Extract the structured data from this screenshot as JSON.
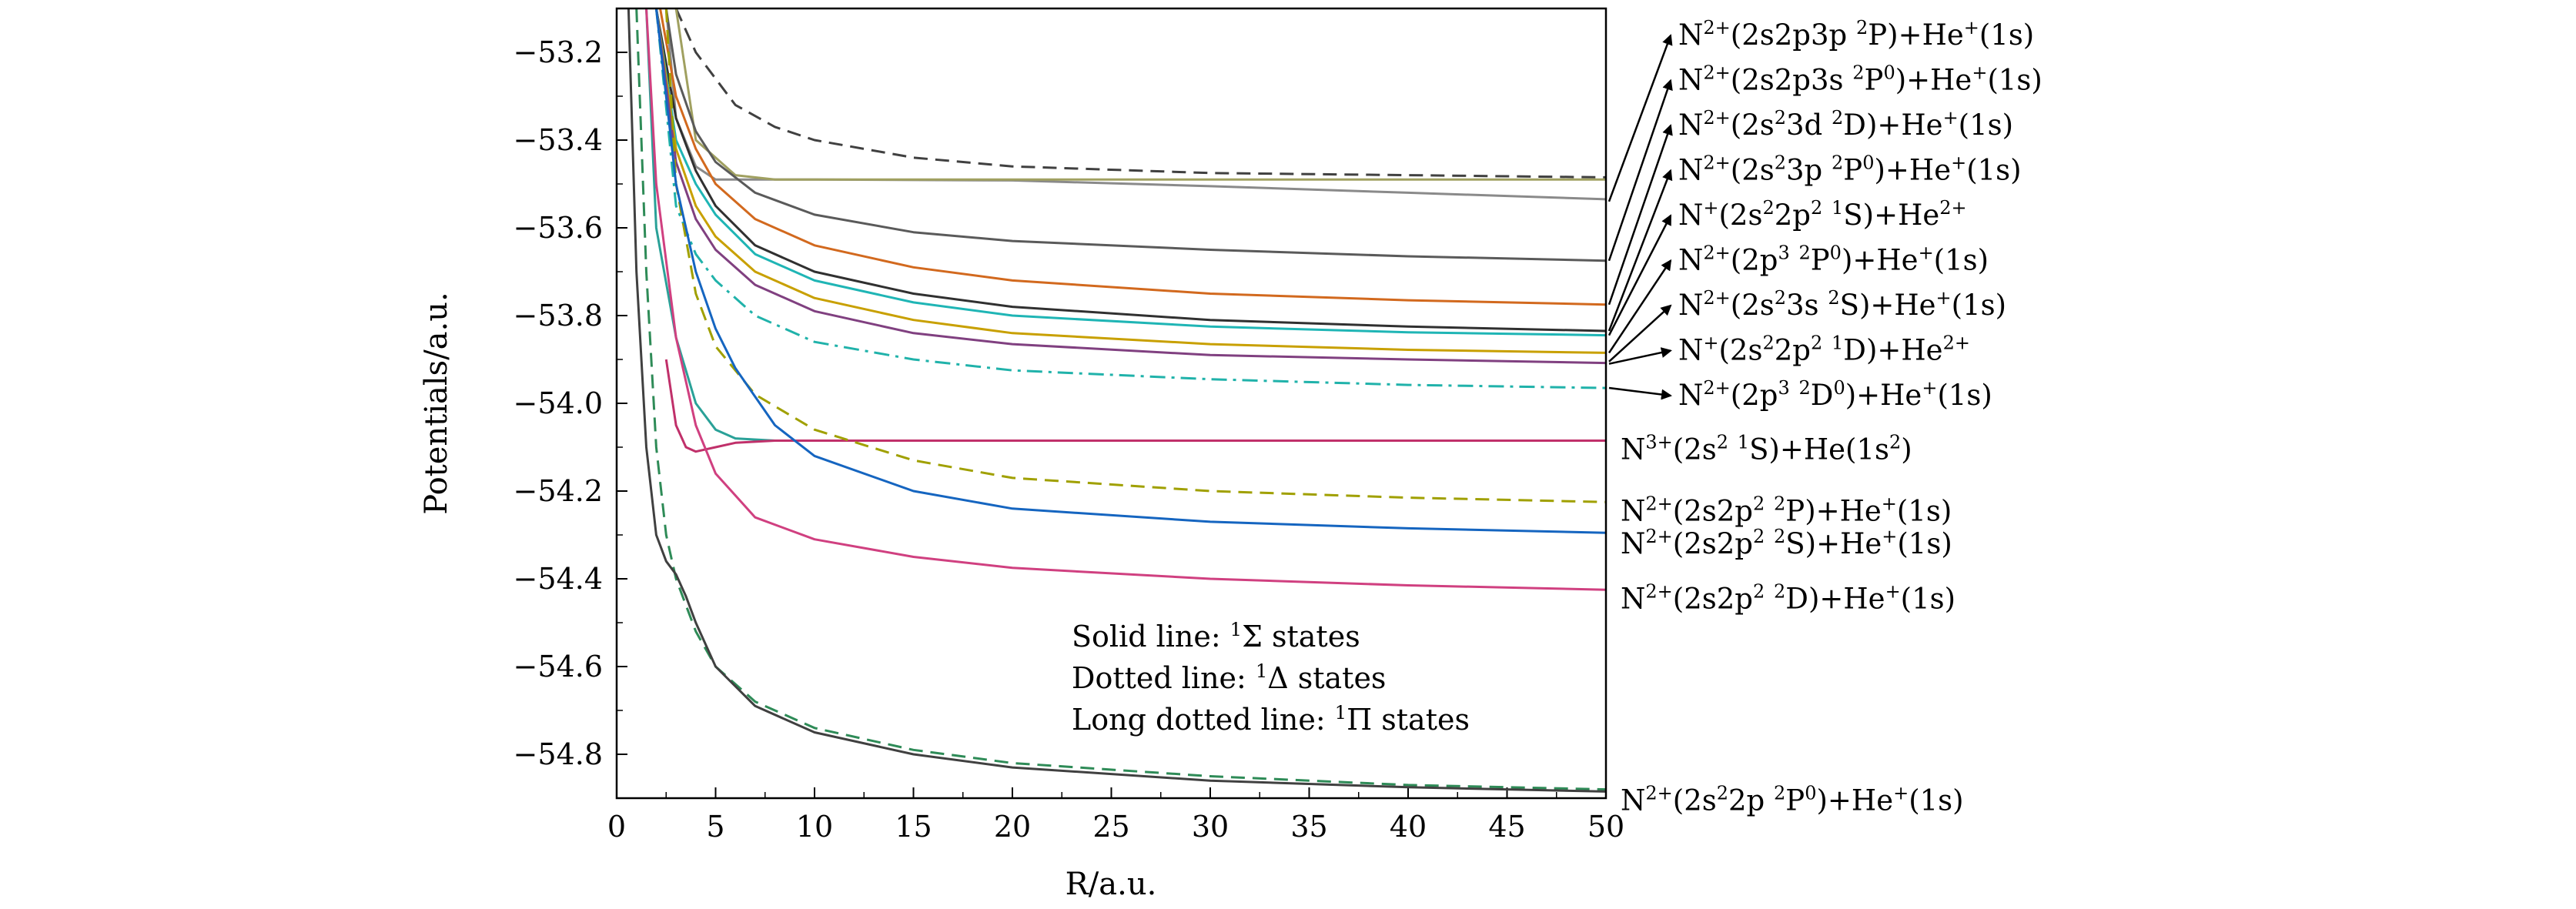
{
  "chart_data": {
    "type": "line",
    "xlabel": "R/a.u.",
    "ylabel": "Potentials/a.u.",
    "xlim": [
      0,
      50
    ],
    "ylim": [
      -54.9,
      -53.1
    ],
    "x_ticks": [
      0,
      5,
      10,
      15,
      20,
      25,
      30,
      35,
      40,
      45,
      50
    ],
    "y_ticks": [
      -54.8,
      -54.6,
      -54.4,
      -54.2,
      -54.0,
      -53.8,
      -53.6,
      -53.4,
      -53.2
    ],
    "x_tick_labels": [
      "0",
      "5",
      "10",
      "15",
      "20",
      "25",
      "30",
      "35",
      "40",
      "45",
      "50"
    ],
    "y_tick_labels": [
      "−54.8",
      "−54.6",
      "−54.4",
      "−54.2",
      "−54.0",
      "−53.8",
      "−53.6",
      "−53.4",
      "−53.2"
    ],
    "notes": [
      {
        "text": "Solid line: ",
        "sup": "1",
        "tail": "Σ states"
      },
      {
        "text": "Dotted line: ",
        "sup": "1",
        "tail": "Δ states"
      },
      {
        "text": "Long dotted line: ",
        "sup": "1",
        "tail": "Π states"
      }
    ],
    "series": [
      {
        "style": "dash",
        "color": "#404040",
        "x": [
          3,
          4,
          6,
          8,
          10,
          15,
          20,
          30,
          40,
          50
        ],
        "y": [
          -53.1,
          -53.2,
          -53.32,
          -53.37,
          -53.4,
          -53.44,
          -53.46,
          -53.475,
          -53.48,
          -53.485
        ]
      },
      {
        "style": "solid",
        "color": "#8a8a8a",
        "x": [
          2.5,
          3,
          4,
          5,
          7,
          10,
          20,
          30,
          40,
          50
        ],
        "y": [
          -53.1,
          -53.35,
          -53.46,
          -53.49,
          -53.49,
          -53.49,
          -53.492,
          -53.505,
          -53.52,
          -53.535
        ]
      },
      {
        "style": "solid",
        "color": "#a0a060",
        "x": [
          3,
          4,
          6,
          8,
          15,
          25,
          50
        ],
        "y": [
          -53.1,
          -53.4,
          -53.48,
          -53.49,
          -53.49,
          -53.49,
          -53.49
        ]
      },
      {
        "style": "solid",
        "color": "#5a5a5a",
        "x": [
          2.5,
          3,
          4,
          5,
          7,
          10,
          15,
          20,
          30,
          40,
          50
        ],
        "y": [
          -53.1,
          -53.25,
          -53.38,
          -53.45,
          -53.52,
          -53.57,
          -53.61,
          -53.63,
          -53.65,
          -53.665,
          -53.675
        ]
      },
      {
        "style": "solid",
        "color": "#d2691e",
        "x": [
          2.2,
          3,
          4,
          5,
          7,
          10,
          15,
          20,
          30,
          40,
          50
        ],
        "y": [
          -53.1,
          -53.3,
          -53.42,
          -53.5,
          -53.58,
          -53.64,
          -53.69,
          -53.72,
          -53.75,
          -53.765,
          -53.775
        ]
      },
      {
        "style": "solid",
        "color": "#303030",
        "x": [
          2,
          3,
          4,
          5,
          7,
          10,
          15,
          20,
          30,
          40,
          50
        ],
        "y": [
          -53.1,
          -53.35,
          -53.47,
          -53.55,
          -53.64,
          -53.7,
          -53.75,
          -53.78,
          -53.81,
          -53.825,
          -53.835
        ]
      },
      {
        "style": "solid",
        "color": "#1fb5b5",
        "x": [
          2,
          3,
          4,
          5,
          7,
          10,
          15,
          20,
          30,
          40,
          50
        ],
        "y": [
          -53.1,
          -53.4,
          -53.5,
          -53.57,
          -53.66,
          -53.72,
          -53.77,
          -53.8,
          -53.825,
          -53.838,
          -53.845
        ]
      },
      {
        "style": "solid",
        "color": "#c8a000",
        "x": [
          2,
          3,
          4,
          5,
          7,
          10,
          15,
          20,
          30,
          40,
          50
        ],
        "y": [
          -53.1,
          -53.42,
          -53.55,
          -53.62,
          -53.7,
          -53.76,
          -53.81,
          -53.84,
          -53.865,
          -53.878,
          -53.885
        ]
      },
      {
        "style": "solid",
        "color": "#804080",
        "x": [
          2,
          3,
          4,
          5,
          7,
          10,
          15,
          20,
          30,
          40,
          50
        ],
        "y": [
          -53.1,
          -53.45,
          -53.58,
          -53.65,
          -53.73,
          -53.79,
          -53.84,
          -53.865,
          -53.89,
          -53.9,
          -53.908
        ]
      },
      {
        "style": "dashdot",
        "color": "#20b2aa",
        "x": [
          2,
          3,
          4,
          5,
          7,
          10,
          15,
          20,
          30,
          40,
          50
        ],
        "y": [
          -53.1,
          -53.55,
          -53.66,
          -53.72,
          -53.8,
          -53.86,
          -53.9,
          -53.925,
          -53.945,
          -53.958,
          -53.965
        ]
      },
      {
        "style": "solid",
        "color": "#2aa198",
        "x": [
          1.5,
          2,
          3,
          4,
          5,
          6,
          8,
          10,
          20,
          50
        ],
        "y": [
          -53.1,
          -53.6,
          -53.85,
          -54.0,
          -54.06,
          -54.08,
          -54.085,
          -54.085,
          -54.085,
          -54.085
        ]
      },
      {
        "style": "solid",
        "color": "#c0306a",
        "x": [
          2.5,
          3,
          3.5,
          4,
          5,
          6,
          8,
          10,
          20,
          50
        ],
        "y": [
          -53.9,
          -54.05,
          -54.1,
          -54.11,
          -54.1,
          -54.09,
          -54.085,
          -54.085,
          -54.085,
          -54.085
        ]
      },
      {
        "style": "dash",
        "color": "#a0a000",
        "x": [
          2.5,
          3,
          4,
          5,
          7,
          10,
          15,
          20,
          30,
          40,
          50
        ],
        "y": [
          -53.1,
          -53.5,
          -53.75,
          -53.87,
          -53.98,
          -54.06,
          -54.13,
          -54.17,
          -54.2,
          -54.215,
          -54.225
        ]
      },
      {
        "style": "solid",
        "color": "#1565c0",
        "x": [
          2,
          3,
          4,
          5,
          6,
          8,
          10,
          15,
          20,
          30,
          40,
          50
        ],
        "y": [
          -53.1,
          -53.5,
          -53.7,
          -53.83,
          -53.92,
          -54.05,
          -54.12,
          -54.2,
          -54.24,
          -54.27,
          -54.285,
          -54.295
        ]
      },
      {
        "style": "solid",
        "color": "#d04080",
        "x": [
          1.5,
          2,
          3,
          4,
          5,
          7,
          10,
          15,
          20,
          30,
          40,
          50
        ],
        "y": [
          -53.1,
          -53.5,
          -53.85,
          -54.05,
          -54.16,
          -54.26,
          -54.31,
          -54.35,
          -54.375,
          -54.4,
          -54.415,
          -54.425
        ]
      },
      {
        "style": "dash",
        "color": "#2e8b57",
        "x": [
          1,
          1.5,
          2,
          2.5,
          3,
          4,
          5,
          7,
          10,
          15,
          20,
          30,
          40,
          50
        ],
        "y": [
          -53.1,
          -53.7,
          -54.1,
          -54.3,
          -54.4,
          -54.52,
          -54.6,
          -54.68,
          -54.74,
          -54.79,
          -54.82,
          -54.85,
          -54.87,
          -54.88
        ]
      },
      {
        "style": "solid",
        "color": "#404040",
        "x": [
          0.6,
          1,
          1.5,
          2,
          2.5,
          3,
          3.5,
          4,
          5,
          7,
          10,
          15,
          20,
          30,
          40,
          50
        ],
        "y": [
          -53.1,
          -53.7,
          -54.1,
          -54.3,
          -54.36,
          -54.39,
          -54.44,
          -54.5,
          -54.6,
          -54.69,
          -54.75,
          -54.8,
          -54.83,
          -54.86,
          -54.875,
          -54.885
        ]
      }
    ],
    "right_labels": [
      {
        "base": "N",
        "sup1": "2+",
        "mid": "(2s2p3p ",
        "sup2": "2",
        "term": "P)+He",
        "sup3": "+",
        "tail": "(1s)",
        "arrow_y": -53.54
      },
      {
        "base": "N",
        "sup1": "2+",
        "mid": "(2s2p3s ",
        "sup2": "2",
        "term": "P",
        "sup2b": "0",
        "term2": ")+He",
        "sup3": "+",
        "tail": "(1s)",
        "arrow_y": -53.675
      },
      {
        "base": "N",
        "sup1": "2+",
        "mid": "(2s",
        "sup2": "2",
        "term": "3d ",
        "sup2b": "2",
        "term2": "D)+He",
        "sup3": "+",
        "tail": "(1s)",
        "arrow_y": -53.775
      },
      {
        "base": "N",
        "sup1": "2+",
        "mid": "(2s",
        "sup2": "2",
        "term": "3p ",
        "sup2b": "2",
        "term2": "P",
        "sup2c": "0",
        "term3": ")+He",
        "sup3": "+",
        "tail": "(1s)",
        "arrow_y": -53.835
      },
      {
        "base": "N",
        "sup1": "+",
        "mid": "(2s",
        "sup2": "2",
        "term": "2p",
        "sup2b": "2",
        "term2": " ",
        "sup2c": "1",
        "term3": "S)+He",
        "sup3": "2+",
        "tail": "",
        "arrow_y": -53.845
      },
      {
        "base": "N",
        "sup1": "2+",
        "mid": "(2p",
        "sup2": "3",
        "term": " ",
        "sup2b": "2",
        "term2": "P",
        "sup2c": "0",
        "term3": ")+He",
        "sup3": "+",
        "tail": "(1s)",
        "arrow_y": -53.885
      },
      {
        "base": "N",
        "sup1": "2+",
        "mid": "(2s",
        "sup2": "2",
        "term": "3s ",
        "sup2b": "2",
        "term2": "S)+He",
        "sup3": "+",
        "tail": "(1s)",
        "arrow_y": -53.905
      },
      {
        "base": "N",
        "sup1": "+",
        "mid": "(2s",
        "sup2": "2",
        "term": "2p",
        "sup2b": "2",
        "term2": " ",
        "sup2c": "1",
        "term3": "D)+He",
        "sup3": "2+",
        "tail": "",
        "arrow_y": -53.91
      },
      {
        "base": "N",
        "sup1": "2+",
        "mid": "(2p",
        "sup2": "3",
        "term": " ",
        "sup2b": "2",
        "term2": "D",
        "sup2c": "0",
        "term3": ")+He",
        "sup3": "+",
        "tail": "(1s)",
        "arrow_y": -53.965
      }
    ],
    "plain_labels": [
      {
        "base": "N",
        "sup1": "3+",
        "mid": "(2s",
        "sup2": "2",
        "term": " ",
        "sup2b": "1",
        "term2": "S)+He(1s",
        "sup2c": "2",
        "term3": ")",
        "y": -54.085
      },
      {
        "base": "N",
        "sup1": "2+",
        "mid": "(2s2p",
        "sup2": "2",
        "term": " ",
        "sup2b": "2",
        "term2": "P)+He",
        "sup3": "+",
        "tail": "(1s)",
        "y": -54.225
      },
      {
        "base": "N",
        "sup1": "2+",
        "mid": "(2s2p",
        "sup2": "2",
        "term": " ",
        "sup2b": "2",
        "term2": "S)+He",
        "sup3": "+",
        "tail": "(1s)",
        "y": -54.3
      },
      {
        "base": "N",
        "sup1": "2+",
        "mid": "(2s2p",
        "sup2": "2",
        "term": " ",
        "sup2b": "2",
        "term2": "D)+He",
        "sup3": "+",
        "tail": "(1s)",
        "y": -54.425
      },
      {
        "base": "N",
        "sup1": "2+",
        "mid": "(2s",
        "sup2": "2",
        "term": "2p ",
        "sup2b": "2",
        "term2": "P",
        "sup2c": "0",
        "term3": ")+He",
        "sup3": "+",
        "tail": "(1s)",
        "y": -54.885
      }
    ]
  }
}
